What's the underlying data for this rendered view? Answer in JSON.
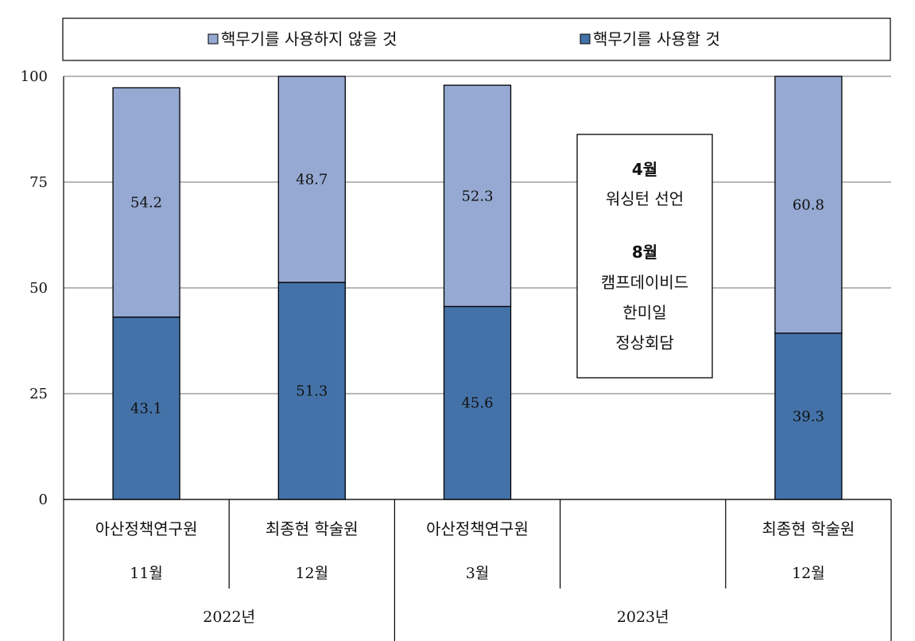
{
  "chart_data": {
    "type": "bar",
    "stacked": true,
    "ylim": [
      0,
      100
    ],
    "yticks": [
      0,
      25,
      50,
      75,
      100
    ],
    "grid": true,
    "legend_position": "top",
    "categories": [
      {
        "group": "아산정책연구원",
        "month": "11월"
      },
      {
        "group": "최종현 학술원",
        "month": "12월"
      },
      {
        "group": "아산정책연구원",
        "month": "3월"
      },
      {
        "group": "",
        "month": ""
      },
      {
        "group": "최종현 학술원",
        "month": "12월"
      }
    ],
    "years": [
      {
        "label": "2022년",
        "span": 2
      },
      {
        "label": "2023년",
        "span": 3
      }
    ],
    "series": [
      {
        "name": "핵무기를 사용할 것",
        "color": "#4472a8",
        "values": [
          43.1,
          51.3,
          45.6,
          null,
          39.3
        ]
      },
      {
        "name": "핵무기를 사용하지 않을 것",
        "color": "#95a9d2",
        "values": [
          54.2,
          48.7,
          52.3,
          null,
          60.8
        ]
      }
    ],
    "legend": [
      {
        "name": "핵무기를 사용하지 않을 것",
        "color": "#95a9d2"
      },
      {
        "name": "핵무기를 사용할 것",
        "color": "#4472a8"
      }
    ],
    "annotation": [
      {
        "text": "4월",
        "bold": true
      },
      {
        "text": "워싱턴 선언",
        "bold": false
      },
      {
        "text": "8월",
        "bold": true
      },
      {
        "text": "캠프데이비드",
        "bold": false
      },
      {
        "text": "한미일",
        "bold": false
      },
      {
        "text": "정상회담",
        "bold": false
      }
    ]
  }
}
